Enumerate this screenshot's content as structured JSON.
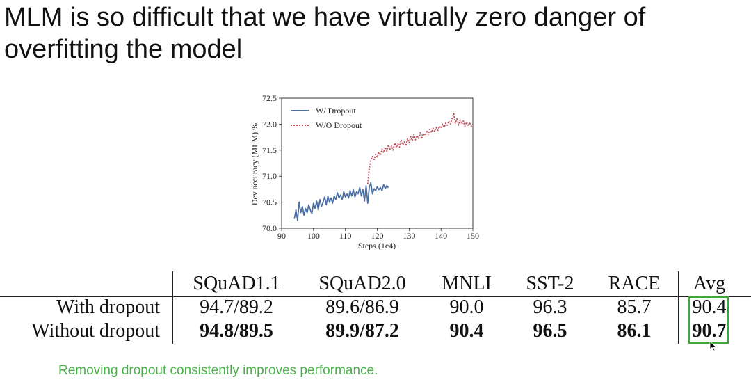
{
  "slide": {
    "title": "MLM is so difficult that we have virtually zero danger of overfitting the model",
    "caption": "Removing dropout consistently improves performance.",
    "caption_color": "#4bb24b",
    "highlight_color": "#3ca83c"
  },
  "chart_data": {
    "type": "line",
    "title": "",
    "xlabel": "Steps (1e4)",
    "ylabel": "Dev accuracy (MLM) %",
    "xlim": [
      90,
      150
    ],
    "ylim": [
      70.0,
      72.5
    ],
    "xticks": [
      90,
      100,
      110,
      120,
      130,
      140,
      150
    ],
    "yticks": [
      70.0,
      70.5,
      71.0,
      71.5,
      72.0,
      72.5
    ],
    "xtick_labels": [
      "90",
      "100",
      "110",
      "120",
      "130",
      "140",
      "150"
    ],
    "ytick_labels": [
      "70.0",
      "70.5",
      "71.0",
      "71.5",
      "72.0",
      "72.5"
    ],
    "legend_position": "top-left",
    "grid": false,
    "series": [
      {
        "name": "W/ Dropout",
        "style": "solid",
        "color": "#4a6fa5",
        "x": [
          94,
          94.5,
          95,
          95.5,
          96,
          96.5,
          97,
          97.5,
          98,
          98.5,
          99,
          99.5,
          100,
          100.5,
          101,
          101.5,
          102,
          102.5,
          103,
          103.5,
          104,
          104.5,
          105,
          105.5,
          106,
          106.5,
          107,
          107.5,
          108,
          108.5,
          109,
          109.5,
          110,
          110.5,
          111,
          111.5,
          112,
          112.5,
          113,
          113.5,
          114,
          114.5,
          115,
          115.5,
          116,
          116.5,
          117,
          117.5,
          118,
          118.5,
          119,
          119.5,
          120,
          120.5,
          121,
          121.5,
          122,
          122.5,
          123,
          123.5
        ],
        "y": [
          70.18,
          70.35,
          70.15,
          70.5,
          70.3,
          70.42,
          70.25,
          70.38,
          70.3,
          70.45,
          70.35,
          70.28,
          70.48,
          70.38,
          70.52,
          70.35,
          70.55,
          70.42,
          70.5,
          70.6,
          70.45,
          70.62,
          70.5,
          70.58,
          70.48,
          70.62,
          70.55,
          70.68,
          70.58,
          70.64,
          70.55,
          70.7,
          70.6,
          70.66,
          70.58,
          70.72,
          70.62,
          70.74,
          70.6,
          70.7,
          70.66,
          70.78,
          70.62,
          70.74,
          70.52,
          70.82,
          70.48,
          70.78,
          70.88,
          70.66,
          70.76,
          70.72,
          70.8,
          70.74,
          70.78,
          70.72,
          70.84,
          70.76,
          70.82,
          70.78
        ]
      },
      {
        "name": "W/O Dropout",
        "style": "dotted",
        "color": "#c0505a",
        "x": [
          117,
          117.5,
          118,
          118.5,
          119,
          119.5,
          120,
          120.5,
          121,
          121.5,
          122,
          122.5,
          123,
          123.5,
          124,
          124.5,
          125,
          125.5,
          126,
          126.5,
          127,
          127.5,
          128,
          128.5,
          129,
          129.5,
          130,
          130.5,
          131,
          131.5,
          132,
          132.5,
          133,
          133.5,
          134,
          134.5,
          135,
          135.5,
          136,
          136.5,
          137,
          137.5,
          138,
          138.5,
          139,
          139.5,
          140,
          140.5,
          141,
          141.5,
          142,
          142.5,
          143,
          143.5,
          144,
          144.5,
          145,
          145.5,
          146,
          146.5,
          147,
          147.5,
          148,
          148.5,
          149,
          149.5,
          150
        ],
        "y": [
          70.85,
          71.15,
          71.3,
          71.38,
          71.32,
          71.42,
          71.36,
          71.46,
          71.4,
          71.52,
          71.45,
          71.56,
          71.48,
          71.6,
          71.52,
          71.58,
          71.5,
          71.64,
          71.55,
          71.62,
          71.56,
          71.7,
          71.6,
          71.66,
          71.58,
          71.72,
          71.64,
          71.76,
          71.68,
          71.8,
          71.7,
          71.78,
          71.72,
          71.84,
          71.74,
          71.82,
          71.78,
          71.88,
          71.8,
          71.9,
          71.84,
          71.92,
          71.86,
          71.94,
          71.88,
          71.96,
          71.92,
          72.0,
          71.94,
          72.02,
          71.98,
          72.06,
          72.0,
          72.12,
          72.2,
          72.02,
          72.1,
          71.98,
          72.08,
          72.0,
          72.06,
          71.96,
          72.04,
          71.98,
          72.02,
          71.96,
          72.0
        ]
      }
    ]
  },
  "table": {
    "headers": [
      "SQuAD1.1",
      "SQuAD2.0",
      "MNLI",
      "SST-2",
      "RACE",
      "Avg"
    ],
    "rows": [
      {
        "label": "With dropout",
        "bold": false,
        "values": [
          "94.7/89.2",
          "89.6/86.9",
          "90.0",
          "96.3",
          "85.7",
          "90.4"
        ]
      },
      {
        "label": "Without dropout",
        "bold": true,
        "values": [
          "94.8/89.5",
          "89.9/87.2",
          "90.4",
          "96.5",
          "86.1",
          "90.7"
        ]
      }
    ]
  }
}
